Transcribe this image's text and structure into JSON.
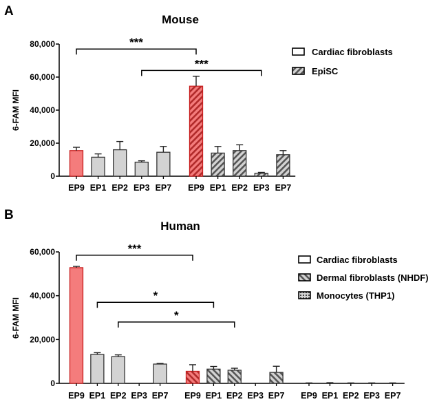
{
  "panels": [
    {
      "letter": "A",
      "title": "Mouse",
      "ylabel": "6-FAM MFI",
      "ylim": [
        0,
        80000
      ],
      "yticks": [
        "0",
        "20,000",
        "40,000",
        "60,000",
        "80,000"
      ],
      "legend": [
        {
          "label": "Cardiac fibroblasts",
          "pattern": "solid"
        },
        {
          "label": "EpiSC",
          "pattern": "diag-fwd"
        }
      ]
    },
    {
      "letter": "B",
      "title": "Human",
      "ylabel": "6-FAM MFI",
      "ylim": [
        0,
        60000
      ],
      "yticks": [
        "0",
        "20,000",
        "40,000",
        "60,000"
      ],
      "legend": [
        {
          "label": "Cardiac fibroblasts",
          "pattern": "solid"
        },
        {
          "label": "Dermal fibroblasts (NHDF)",
          "pattern": "diag-back"
        },
        {
          "label": "Monocytes (THP1)",
          "pattern": "dots"
        }
      ]
    }
  ],
  "chart_data": [
    {
      "type": "bar",
      "title": "Mouse",
      "xlabel": "",
      "ylabel": "6-FAM MFI",
      "ylim": [
        0,
        80000
      ],
      "categories": [
        "EP9",
        "EP1",
        "EP2",
        "EP3",
        "EP7"
      ],
      "series": [
        {
          "name": "Cardiac fibroblasts",
          "pattern": "solid",
          "values": [
            15500,
            11500,
            16000,
            8500,
            14500
          ],
          "errors": [
            2000,
            2000,
            5000,
            800,
            3500
          ],
          "colors": [
            "#f47c7c",
            "#d3d3d3",
            "#d3d3d3",
            "#d3d3d3",
            "#d3d3d3"
          ]
        },
        {
          "name": "EpiSC",
          "pattern": "diag-fwd",
          "values": [
            54500,
            14000,
            15500,
            1800,
            13000
          ],
          "errors": [
            6000,
            4000,
            3500,
            500,
            2500
          ],
          "colors": [
            "#f47c7c",
            "#d3d3d3",
            "#d3d3d3",
            "#d3d3d3",
            "#d3d3d3"
          ]
        }
      ],
      "significance": [
        {
          "label": "***",
          "from": {
            "series": 0,
            "category": 0
          },
          "to": {
            "series": 1,
            "category": 0
          },
          "level": 77000
        },
        {
          "label": "***",
          "from": {
            "series": 0,
            "category": 3
          },
          "to": {
            "series": 1,
            "category": 3
          },
          "level": 64000
        }
      ]
    },
    {
      "type": "bar",
      "title": "Human",
      "xlabel": "",
      "ylabel": "6-FAM MFI",
      "ylim": [
        0,
        60000
      ],
      "categories": [
        "EP9",
        "EP1",
        "EP2",
        "EP3",
        "EP7"
      ],
      "series": [
        {
          "name": "Cardiac fibroblasts",
          "pattern": "solid",
          "values": [
            52800,
            13200,
            12200,
            0,
            8800
          ],
          "errors": [
            600,
            800,
            800,
            0,
            300
          ],
          "colors": [
            "#f47c7c",
            "#d3d3d3",
            "#d3d3d3",
            "#d3d3d3",
            "#d3d3d3"
          ]
        },
        {
          "name": "Dermal fibroblasts (NHDF)",
          "pattern": "diag-back",
          "values": [
            5500,
            6500,
            6000,
            0,
            5000
          ],
          "errors": [
            3000,
            1200,
            900,
            0,
            2800
          ],
          "colors": [
            "#f47c7c",
            "#d3d3d3",
            "#d3d3d3",
            "#d3d3d3",
            "#d3d3d3"
          ]
        },
        {
          "name": "Monocytes (THP1)",
          "pattern": "dots",
          "values": [
            0,
            0,
            0,
            0,
            0
          ],
          "errors": [
            200,
            300,
            200,
            200,
            200
          ],
          "colors": [
            "#f47c7c",
            "#d3d3d3",
            "#d3d3d3",
            "#d3d3d3",
            "#d3d3d3"
          ]
        }
      ],
      "significance": [
        {
          "label": "***",
          "from": {
            "series": 0,
            "category": 0
          },
          "to": {
            "series": 1,
            "category": 0
          },
          "level": 58500
        },
        {
          "label": "*",
          "from": {
            "series": 0,
            "category": 1
          },
          "to": {
            "series": 1,
            "category": 1
          },
          "level": 37000
        },
        {
          "label": "*",
          "from": {
            "series": 0,
            "category": 2
          },
          "to": {
            "series": 1,
            "category": 2
          },
          "level": 28000
        }
      ]
    }
  ]
}
